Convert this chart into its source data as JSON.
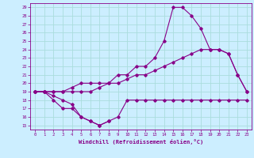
{
  "background_color": "#cceeff",
  "grid_color": "#aadddd",
  "line_color": "#880088",
  "xlim": [
    -0.5,
    23.5
  ],
  "ylim": [
    14.5,
    29.5
  ],
  "xlabel": "Windchill (Refroidissement éolien,°C)",
  "xticks": [
    0,
    1,
    2,
    3,
    4,
    5,
    6,
    7,
    8,
    9,
    10,
    11,
    12,
    13,
    14,
    15,
    16,
    17,
    18,
    19,
    20,
    21,
    22,
    23
  ],
  "yticks": [
    15,
    16,
    17,
    18,
    19,
    20,
    21,
    22,
    23,
    24,
    25,
    26,
    27,
    28,
    29
  ],
  "lines": [
    {
      "x": [
        0,
        1,
        2,
        3,
        4,
        5,
        6,
        7,
        8,
        9,
        10,
        11,
        12,
        13,
        14,
        15,
        16,
        17,
        18,
        19,
        20,
        21,
        22,
        23
      ],
      "y": [
        19,
        19,
        18.5,
        18,
        17.5,
        16,
        15.5,
        15,
        15.5,
        16,
        18,
        18,
        18,
        18,
        18,
        18,
        18,
        18,
        18,
        18,
        18,
        18,
        18,
        18
      ]
    },
    {
      "x": [
        0,
        1,
        2,
        3,
        4,
        5,
        6,
        7,
        8
      ],
      "y": [
        19,
        19,
        18,
        17,
        17,
        16,
        15.5,
        15,
        15.5
      ]
    },
    {
      "x": [
        0,
        1,
        2,
        3,
        4,
        5,
        6,
        7,
        8,
        9,
        10,
        11,
        12,
        13,
        14,
        15,
        16,
        17,
        18,
        19,
        20,
        21,
        22,
        23
      ],
      "y": [
        19,
        19,
        19,
        19,
        19,
        19,
        19,
        19.5,
        20,
        20,
        20.5,
        21,
        21,
        21.5,
        22,
        22.5,
        23,
        23.5,
        24,
        24,
        24,
        23.5,
        21,
        19
      ]
    },
    {
      "x": [
        0,
        1,
        2,
        3,
        4,
        5,
        6,
        7,
        8,
        9,
        10,
        11,
        12,
        13,
        14,
        15,
        16,
        17,
        18,
        19,
        20,
        21,
        22,
        23
      ],
      "y": [
        19,
        19,
        19,
        19,
        19.5,
        20,
        20,
        20,
        20,
        21,
        21,
        22,
        22,
        23,
        25,
        29,
        29,
        28,
        26.5,
        24,
        24,
        23.5,
        21,
        19
      ]
    }
  ]
}
